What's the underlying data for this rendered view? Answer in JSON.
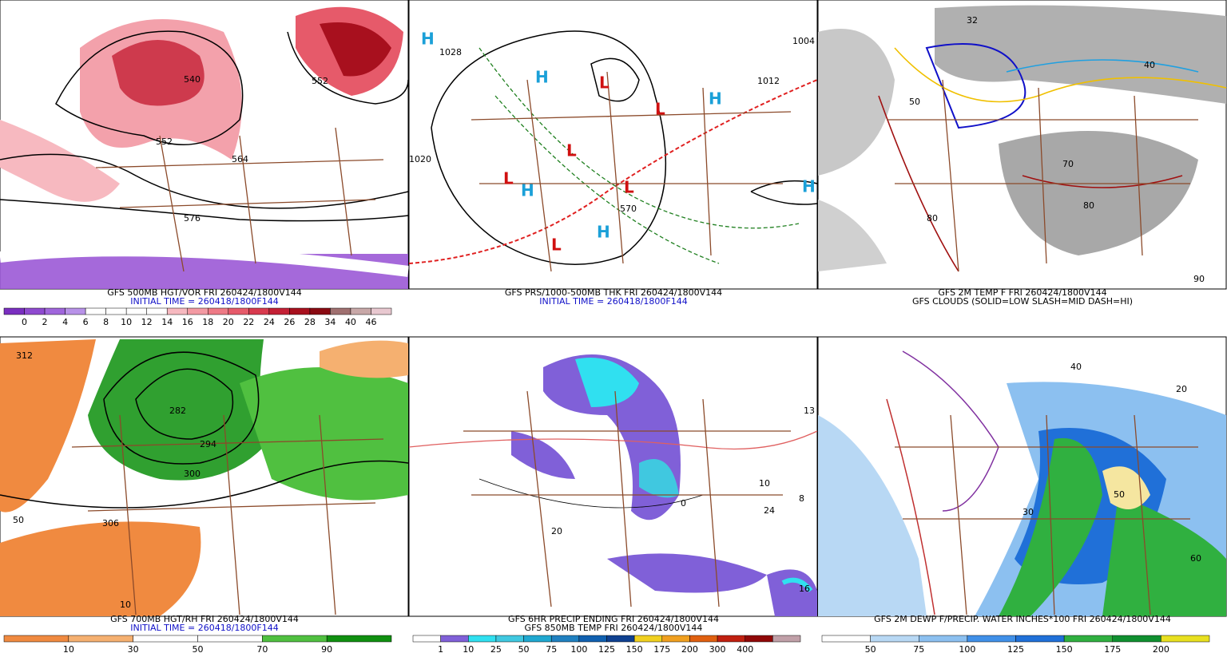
{
  "panels": [
    {
      "captions": [
        {
          "text": "GFS 500MB HGT/VOR FRI 260424/1800V144",
          "color": "#000000"
        },
        {
          "text": "INITIAL TIME = 260418/1800F144",
          "color": "#1010c8"
        }
      ],
      "colorbar": {
        "colors": [
          "#7a2fc0",
          "#8f4ad0",
          "#a066dc",
          "#b892e8",
          "#ffffff",
          "#ffffff",
          "#ffffff",
          "#ffffff",
          "#f7b9c0",
          "#f39aa3",
          "#ee7a86",
          "#e65a6a",
          "#d83a4e",
          "#c42036",
          "#a8101e",
          "#8a0a12",
          "#a07070",
          "#c8a8a8",
          "#e8c8d0"
        ],
        "labels": [
          0,
          2,
          4,
          6,
          8,
          10,
          12,
          14,
          16,
          18,
          20,
          22,
          24,
          26,
          28,
          34,
          40,
          46
        ]
      },
      "map_labels": [
        "576",
        "552",
        "540",
        "564",
        "552"
      ]
    },
    {
      "captions": [
        {
          "text": "GFS PRS/1000-500MB THK FRI 260424/1800V144",
          "color": "#000000"
        },
        {
          "text": "INITIAL TIME = 260418/1800F144",
          "color": "#1010c8"
        }
      ],
      "map_labels": [
        "H",
        "H",
        "H",
        "H",
        "H",
        "H",
        "L",
        "L",
        "L",
        "L",
        "L",
        "L",
        "1028",
        "1020",
        "1004",
        "1012",
        "570"
      ]
    },
    {
      "captions": [
        {
          "text": "GFS 2M TEMP F FRI 260424/1800V144",
          "color": "#000000"
        },
        {
          "text": "GFS CLOUDS (SOLID=LOW SLASH=MID DASH=HI)",
          "color": "#000000"
        }
      ],
      "map_labels": [
        "32",
        "40",
        "50",
        "70",
        "80",
        "80",
        "90"
      ]
    },
    {
      "captions": [
        {
          "text": "GFS 700MB HGT/RH FRI 260424/1800V144",
          "color": "#000000"
        },
        {
          "text": "INITIAL TIME = 260418/1800F144",
          "color": "#1010c8"
        }
      ],
      "colorbar": {
        "colors": [
          "#f08a40",
          "#f5b070",
          "#ffffff",
          "#ffffff",
          "#50c040",
          "#109010"
        ],
        "labels": [
          10,
          30,
          50,
          70,
          90
        ]
      },
      "map_labels": [
        "312",
        "50",
        "10",
        "306",
        "294",
        "282",
        "300"
      ]
    },
    {
      "captions": [
        {
          "text": "GFS 6HR PRECIP ENDING FRI 260424/1800V144",
          "color": "#000000"
        },
        {
          "text": "GFS 850MB TEMP FRI 260424/1800V144",
          "color": "#000000"
        }
      ],
      "colorbar": {
        "colors": [
          "#ffffff",
          "#8060d8",
          "#30e0f0",
          "#40c8e0",
          "#20a8d0",
          "#2080c0",
          "#1060b0",
          "#0f4090",
          "#f0d020",
          "#f0a020",
          "#e06010",
          "#c02010",
          "#900808",
          "#c0a0a8"
        ],
        "labels": [
          1,
          10,
          25,
          50,
          75,
          100,
          125,
          150,
          175,
          200,
          300,
          400
        ]
      },
      "map_labels": [
        "8",
        "24",
        "10",
        "0",
        "13",
        "20",
        "16"
      ]
    },
    {
      "captions": [
        {
          "text": "GFS 2M DEWP F/PRECIP. WATER INCHES*100 FRI 260424/1800V144",
          "color": "#000000"
        }
      ],
      "colorbar": {
        "colors": [
          "#ffffff",
          "#b8d8f4",
          "#8cc0f0",
          "#4090e8",
          "#2070d8",
          "#30b040",
          "#109030",
          "#e8e020"
        ],
        "labels": [
          50,
          75,
          100,
          125,
          150,
          175,
          200
        ]
      },
      "map_labels": [
        "30",
        "20",
        "50",
        "40",
        "60"
      ]
    }
  ]
}
